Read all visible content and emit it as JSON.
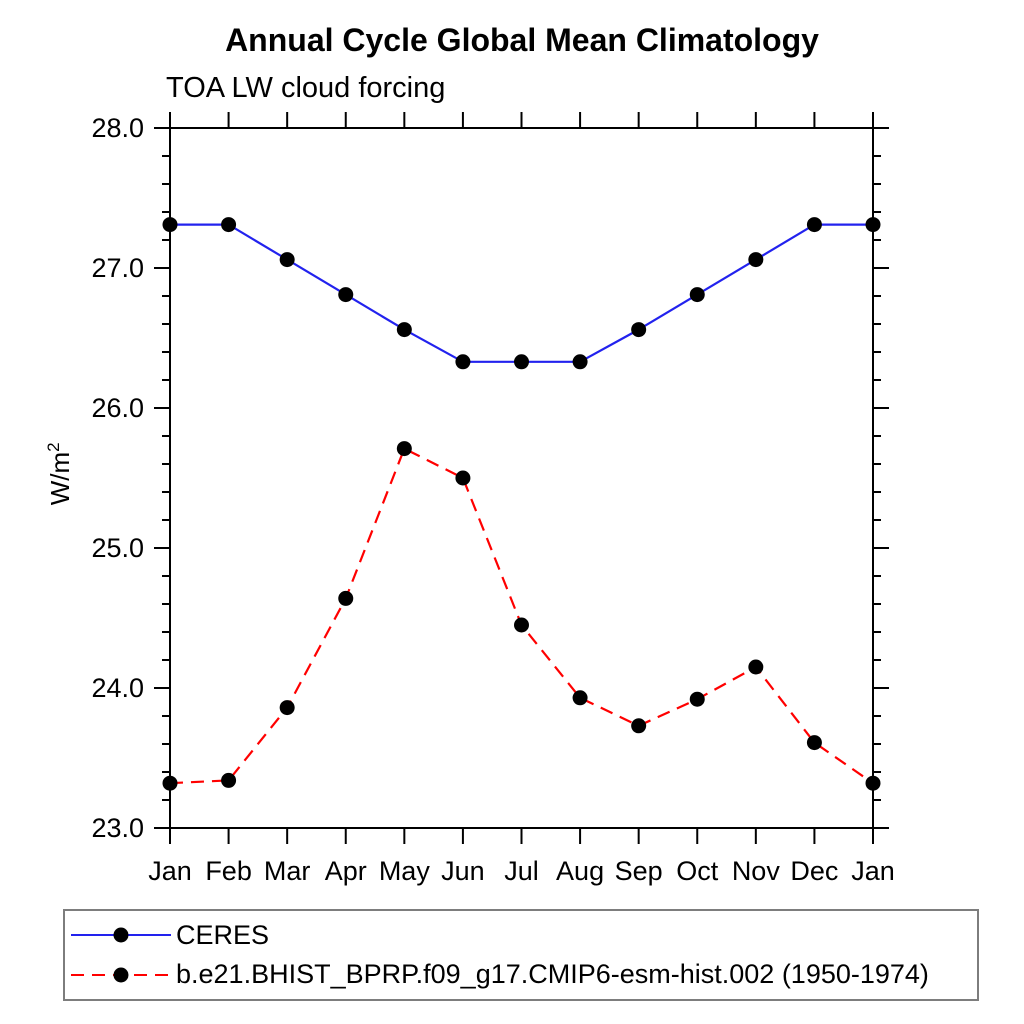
{
  "header": {
    "title": "Annual Cycle Global Mean Climatology",
    "subtitle": "TOA LW cloud forcing"
  },
  "axes": {
    "y_unit_base": "W/m",
    "y_unit_exp": "2"
  },
  "chart_data": {
    "type": "line",
    "title": "Annual Cycle Global Mean Climatology",
    "subtitle": "TOA LW cloud forcing",
    "xlabel": "",
    "ylabel": "W/m^2",
    "categories": [
      "Jan",
      "Feb",
      "Mar",
      "Apr",
      "May",
      "Jun",
      "Jul",
      "Aug",
      "Sep",
      "Oct",
      "Nov",
      "Dec",
      "Jan"
    ],
    "ylim": [
      23.0,
      28.0
    ],
    "ytick_labels": [
      "23.0",
      "24.0",
      "25.0",
      "26.0",
      "27.0",
      "28.0"
    ],
    "y_major_step": 1.0,
    "y_minor_step": 0.2,
    "grid": false,
    "legend_position": "bottom-box",
    "axis_color": "#000000",
    "legend_border_color": "#7d7d7d",
    "series": [
      {
        "name": "CERES",
        "color": "#2222ee",
        "line_style": "solid",
        "marker": "filled-circle",
        "marker_color": "#000000",
        "values": [
          27.31,
          27.31,
          27.06,
          26.81,
          26.56,
          26.33,
          26.33,
          26.33,
          26.56,
          26.81,
          27.06,
          27.31,
          27.31
        ]
      },
      {
        "name": "b.e21.BHIST_BPRP.f09_g17.CMIP6-esm-hist.002 (1950-1974)",
        "color": "#ff0000",
        "line_style": "dashed",
        "marker": "filled-circle",
        "marker_color": "#000000",
        "values": [
          23.32,
          23.34,
          23.86,
          24.64,
          25.71,
          25.5,
          24.45,
          23.93,
          23.73,
          23.92,
          24.15,
          23.61,
          23.32
        ]
      }
    ]
  }
}
